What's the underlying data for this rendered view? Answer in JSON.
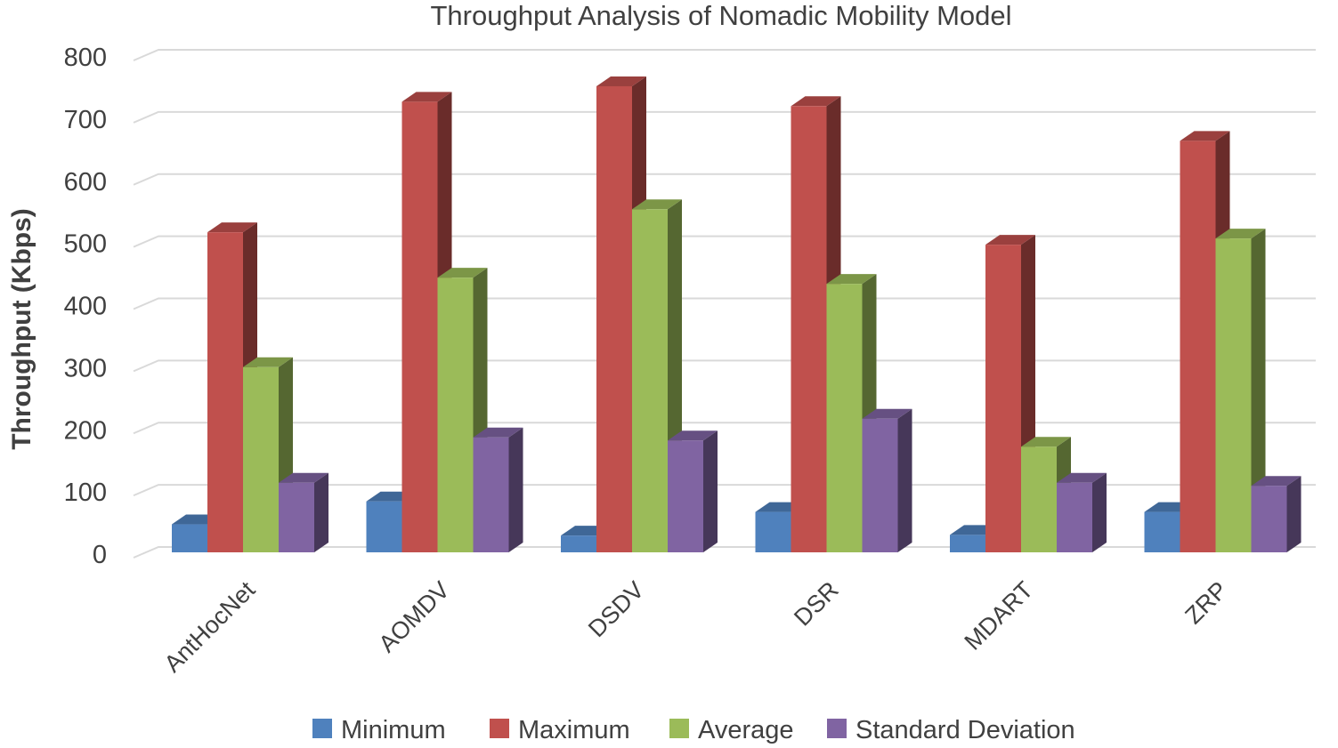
{
  "chart_data": {
    "type": "bar",
    "title": "Throughput Analysis of Nomadic Mobility Model",
    "xlabel": "",
    "ylabel": "Throughput  (Kbps)",
    "ylim": [
      0,
      800
    ],
    "yticks": [
      0,
      100,
      200,
      300,
      400,
      500,
      600,
      700,
      800
    ],
    "grid": true,
    "legend_position": "bottom",
    "style": "3d-clustered-column",
    "categories": [
      "AntHocNet",
      "AOMDV",
      "DSDV",
      "DSR",
      "MDART",
      "ZRP"
    ],
    "series": [
      {
        "name": "Minimum",
        "color": "#4f81bd",
        "values": [
          45,
          82,
          27,
          65,
          28,
          65
        ]
      },
      {
        "name": "Maximum",
        "color": "#c0504d",
        "values": [
          515,
          725,
          750,
          718,
          495,
          662
        ]
      },
      {
        "name": "Average",
        "color": "#9bbb59",
        "values": [
          298,
          442,
          552,
          432,
          170,
          505
        ]
      },
      {
        "name": "Standard Deviation",
        "color": "#8064a2",
        "values": [
          112,
          185,
          180,
          215,
          112,
          107
        ]
      }
    ]
  }
}
